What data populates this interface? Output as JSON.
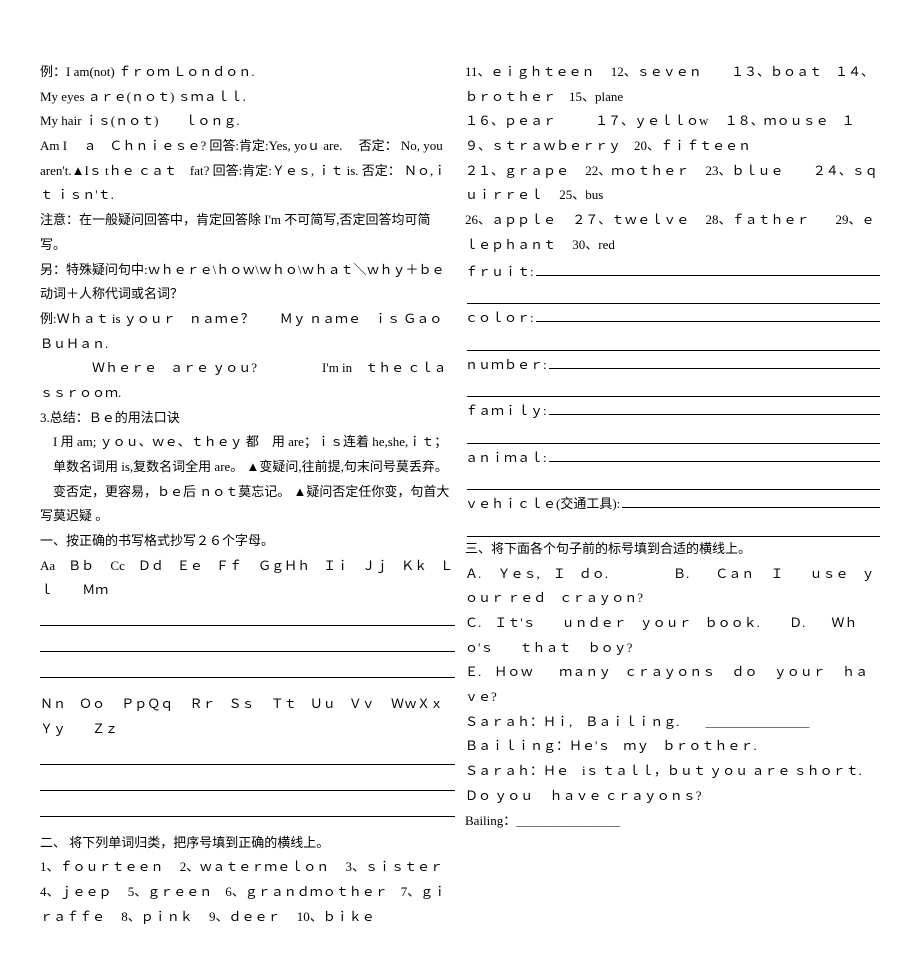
{
  "left": {
    "ex_label": "例：",
    "ex1": "I am(not) ｆｒｏｍ Ｌｏｎｄｏｎ.",
    "ex2": "My eyes  ａｒｅ(ｎｏｔ) ｓｍａｌｌ.",
    "ex3": "My hair  ｉｓ(ｎｏｔ)　　ｌｏｎｇ.",
    "q1": "Am I 　ａ　Ｃｈｎｉｅｓｅ?  回答:肯定:Yes, yoｕ are.　 否定： No, you aren't.▲Iｓ tｈｅ ｃａｔ　fat?  回答:肯定:Ｙｅｓ,  ｉｔ is.  否定： Ｎｏ,ｉｔ  ｉｓｎ'ｔ.",
    "note1": "注意：在一般疑问回答中，肯定回答除 I'm 不可简写,否定回答均可简写。",
    "note2": "另：特殊疑问句中:ｗｈｅｒｅ\\ｈｏｗ\\ｗｈｏ\\ｗｈａｔ＼ｗｈｙ＋ｂｅ动词＋人称代词或名词？",
    "ex4": "例:Ｗｈａｔ is  ｙｏｕｒ　ｎａｍｅ？　　Ｍｙ ｎａｍｅ　ｉｓ ＧａｏＢｕＨａｎ.",
    "ex5": "　　　　Ｗｈｅｒｅ　ａｒｅ ｙｏｕ?　　　　　I'm in　ｔｈｅ ｃｌａｓｓｒｏｏｍ.",
    "summary_title": "3.总结：Ｂｅ的用法口诀",
    "sum1": "　I 用 am; ｙｏｕ、ｗｅ、ｔｈｅｙ 都　用 are；ｉｓ连着 he,she,ｉｔ；",
    "sum2": "　单数名词用 is,复数名词全用 are。 ▲变疑问,往前提,句末问号莫丢弃。",
    "sum3": "　变否定，更容易，ｂｅ后 ｎｏｔ莫忘记。 ▲疑问否定任你变，句首大写莫迟疑 。",
    "task1_title": "一、按正确的书写格式抄写２６个字母。",
    "letters1": "Aa　Ｂｂ　 Cc　Ｄｄ　Ｅｅ　Ｆｆ　 ＧｇＨｈ　Ｉｉ　Ｊｊ　Ｋｋ　Ｌｌ　　 Ｍｍ",
    "letters2": "Ｎｎ　Ｏｏ　 ＰｐＱｑ　 Ｒｒ　Ｓｓ　 Ｔｔ　Ｕｕ　Ｖｖ　 ＷｗＸｘ　 Ｙｙ　　Ｚｚ",
    "task2_title": "二、 将下列单词归类，把序号填到正确的横线上。",
    "words1": "1、ｆｏｕｒｔｅｅｎ　 2、ｗａｔｅｒｍｅｌｏｎ　 3、ｓｉｓｔｅｒ　4、ｊｅｅｐ　 5、ｇｒｅｅｎ　6、ｇｒａｎｄｍｏｔｈｅｒ　7、ｇｉｒａｆｆｅ　 8、ｐｉｎｋ　 9、ｄｅｅｒ　 10、ｂｉｋｅ"
  },
  "right": {
    "words2": "11、ｅｉｇｈｔｅｅｎ　 12、ｓｅｖｅｎ　　 １３、ｂｏａｔ　１４、ｂｒｏｔｈｅｒ　15、plane",
    "words3": "１６、ｐｅａｒ　　　１７、ｙｅｌｌｏw　 １８、ｍｏｕｓｅ　１９、ｓｔｒａｗｂｅｒｒｙ　20、ｆｉｆｔｅｅｎ",
    "words4": "２１、ｇｒａｐｅ　 22、ｍｏｔｈｅｒ　 23、ｂｌｕｅ　　 ２４、ｓｑｕｉｒｒｅｌ　 25、bus",
    "words5": "26、ａｐｐｌｅ　 ２７、ｔｗｅｌｖｅ　 28、ｆａｔｈｅｒ　　29、ｅｌｅｐｈａｎｔ　 30、red",
    "cat_fruit": "ｆｒｕｉｔ:",
    "cat_color": "ｃｏｌｏｒ:",
    "cat_number": "ｎｕｍｂｅｒ:",
    "cat_family": "ｆａｍｉｌｙ:",
    "cat_animal": "ａｎｉｍａｌ:",
    "cat_vehicle": "ｖｅｈｉｃｌｅ(交通工具):",
    "task3_title": "三、将下面各个句子前的标号填到合适的横线上。",
    "choiceA": "Ａ.　 Ｙｅｓ,　Ｉ　ｄｏ.　　　　　Ｂ.　　Ｃａｎ　 Ｉ　　ｕｓｅ　ｙｏｕｒ  ｒｅｄ　ｃｒａｙｏｎ?",
    "choiceC": "Ｃ.　Ｉｔ'ｓ　　ｕｎｄｅｒ　ｙｏｕｒ　ｂｏｏｋ.　　 Ｄ.　　Ｗｈｏ'ｓ　　ｔｈａｔ　 ｂｏｙ?",
    "choiceE": "Ｅ.　Ｈｏｗ　　ｍａｎｙ　ｃｒａｙｏｎｓ 　ｄｏ　 ｙｏｕｒ　 ｈａｖｅ?",
    "dlg1": "Ｓａｒａｈ：Ｈｉ,　Ｂａｉｌｉｎｇ.　　＿＿＿＿＿＿＿＿",
    "dlg2": "Ｂａｉｌｉｎｇ：Ｈｅ'ｓ　ｍｙ　ｂｒｏｔｈｅｒ.",
    "dlg3": "Ｓａｒａｈ：Ｈｅ　iｓ ｔａｌｌ，ｂｕｔ  ｙｏｕ  ａｒｅ ｓｈｏｒｔ.　　　Ｄｏ  ｙｏｕ　 ｈａｖｅ ｃｒａｙｏｎｓ?",
    "dlg4": "Bailing：＿＿＿＿＿＿＿＿"
  }
}
